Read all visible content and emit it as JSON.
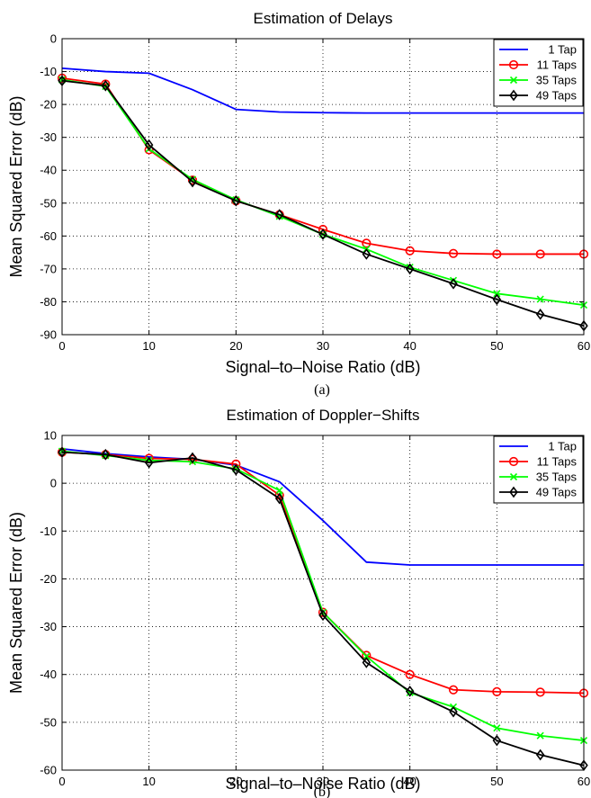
{
  "chart_data": [
    {
      "type": "line",
      "panel_caption": "(a)",
      "title": "Estimation of Delays",
      "xlabel": "Signal–to–Noise Ratio (dB)",
      "ylabel": "Mean Squared Error (dB)",
      "xlim": [
        0,
        60
      ],
      "ylim": [
        -90,
        0
      ],
      "xticks": [
        0,
        10,
        20,
        30,
        40,
        50,
        60
      ],
      "yticks": [
        0,
        -10,
        -20,
        -30,
        -40,
        -50,
        -60,
        -70,
        -80,
        -90
      ],
      "grid": true,
      "legend_position": "top-right",
      "series": [
        {
          "name": "1 Tap",
          "color": "#0000ff",
          "marker": "none",
          "x": [
            0,
            5,
            10,
            15,
            20,
            25,
            30,
            35,
            40,
            45,
            50,
            55,
            60
          ],
          "y": [
            -9,
            -10,
            -10.5,
            -15.5,
            -21.5,
            -22.3,
            -22.5,
            -22.6,
            -22.6,
            -22.6,
            -22.6,
            -22.6,
            -22.6
          ]
        },
        {
          "name": "11 Taps",
          "color": "#ff0000",
          "marker": "circle",
          "x": [
            0,
            5,
            10,
            15,
            20,
            25,
            30,
            35,
            40,
            45,
            50,
            55,
            60
          ],
          "y": [
            -12,
            -13.8,
            -33.8,
            -43,
            -49.3,
            -53.5,
            -58,
            -62.2,
            -64.5,
            -65.3,
            -65.5,
            -65.5,
            -65.5
          ]
        },
        {
          "name": "35 Taps",
          "color": "#00ff00",
          "marker": "x",
          "x": [
            0,
            5,
            10,
            15,
            20,
            25,
            30,
            35,
            40,
            45,
            50,
            55,
            60
          ],
          "y": [
            -12.5,
            -14.5,
            -33.5,
            -42.8,
            -49,
            -54,
            -59.5,
            -64,
            -69.5,
            -73.5,
            -77.5,
            -79.2,
            -81
          ]
        },
        {
          "name": "49 Taps",
          "color": "#000000",
          "marker": "diamond",
          "x": [
            0,
            5,
            10,
            15,
            20,
            25,
            30,
            35,
            40,
            45,
            50,
            55,
            60
          ],
          "y": [
            -12.8,
            -14.3,
            -32.3,
            -43.5,
            -49.3,
            -53.5,
            -59.5,
            -65.5,
            -70,
            -74.5,
            -79.3,
            -83.8,
            -87.3
          ]
        }
      ]
    },
    {
      "type": "line",
      "panel_caption": "(b)",
      "title": "Estimation of Doppler−Shifts",
      "xlabel": "Signal–to–Noise Ratio (dB)",
      "ylabel": "Mean Squared Error (dB)",
      "xlim": [
        0,
        60
      ],
      "ylim": [
        -60,
        10
      ],
      "xticks": [
        0,
        10,
        20,
        30,
        40,
        50,
        60
      ],
      "yticks": [
        10,
        0,
        -10,
        -20,
        -30,
        -40,
        -50,
        -60
      ],
      "grid": true,
      "legend_position": "top-right",
      "series": [
        {
          "name": "1 Tap",
          "color": "#0000ff",
          "marker": "none",
          "x": [
            0,
            5,
            10,
            15,
            20,
            25,
            30,
            35,
            40,
            45,
            50,
            55,
            60
          ],
          "y": [
            7.2,
            6.2,
            5.5,
            5,
            3.8,
            0.3,
            -7.8,
            -16.5,
            -17.1,
            -17.1,
            -17.1,
            -17.1,
            -17.1
          ]
        },
        {
          "name": "11 Taps",
          "color": "#ff0000",
          "marker": "circle",
          "x": [
            0,
            5,
            10,
            15,
            20,
            25,
            30,
            35,
            40,
            45,
            50,
            55,
            60
          ],
          "y": [
            6.5,
            6,
            5.2,
            5,
            4,
            -2.5,
            -27,
            -36,
            -40,
            -43.2,
            -43.6,
            -43.7,
            -43.9
          ]
        },
        {
          "name": "35 Taps",
          "color": "#00ff00",
          "marker": "x",
          "x": [
            0,
            5,
            10,
            15,
            20,
            25,
            30,
            35,
            40,
            45,
            50,
            55,
            60
          ],
          "y": [
            6.7,
            5.8,
            4.8,
            4.5,
            3,
            -1.5,
            -27,
            -36.2,
            -43.8,
            -46.8,
            -51.2,
            -52.8,
            -53.8
          ]
        },
        {
          "name": "49 Taps",
          "color": "#000000",
          "marker": "diamond",
          "x": [
            0,
            5,
            10,
            15,
            20,
            25,
            30,
            35,
            40,
            45,
            50,
            55,
            60
          ],
          "y": [
            6.5,
            6,
            4.3,
            5.3,
            2.8,
            -3.2,
            -27.6,
            -37.5,
            -43.5,
            -47.8,
            -53.8,
            -56.8,
            -59
          ]
        }
      ]
    }
  ]
}
